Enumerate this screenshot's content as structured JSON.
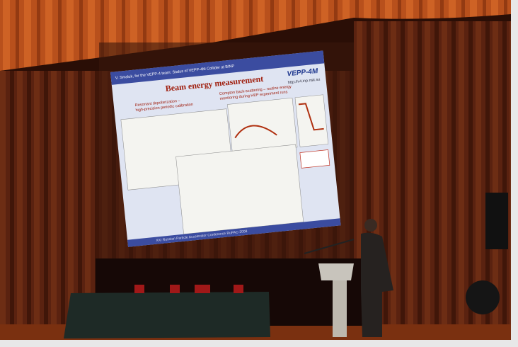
{
  "slide": {
    "header": "V. Smaluk, for the VEPP-4 team: Status of VEPP-4M Collider at BINP",
    "logo": "VEPP-4M",
    "url": "http://v4.inp.nsk.su",
    "title": "Beam energy measurement",
    "left_caption": [
      "Resonant depolarization –",
      "high-precision periodic calibration"
    ],
    "right_caption": [
      "Compton back-scattering – routine energy",
      "monitoring during HEP experiment runs"
    ],
    "footer": "XXI Russian Particle Accelerator Conference RuPAC-2008"
  }
}
